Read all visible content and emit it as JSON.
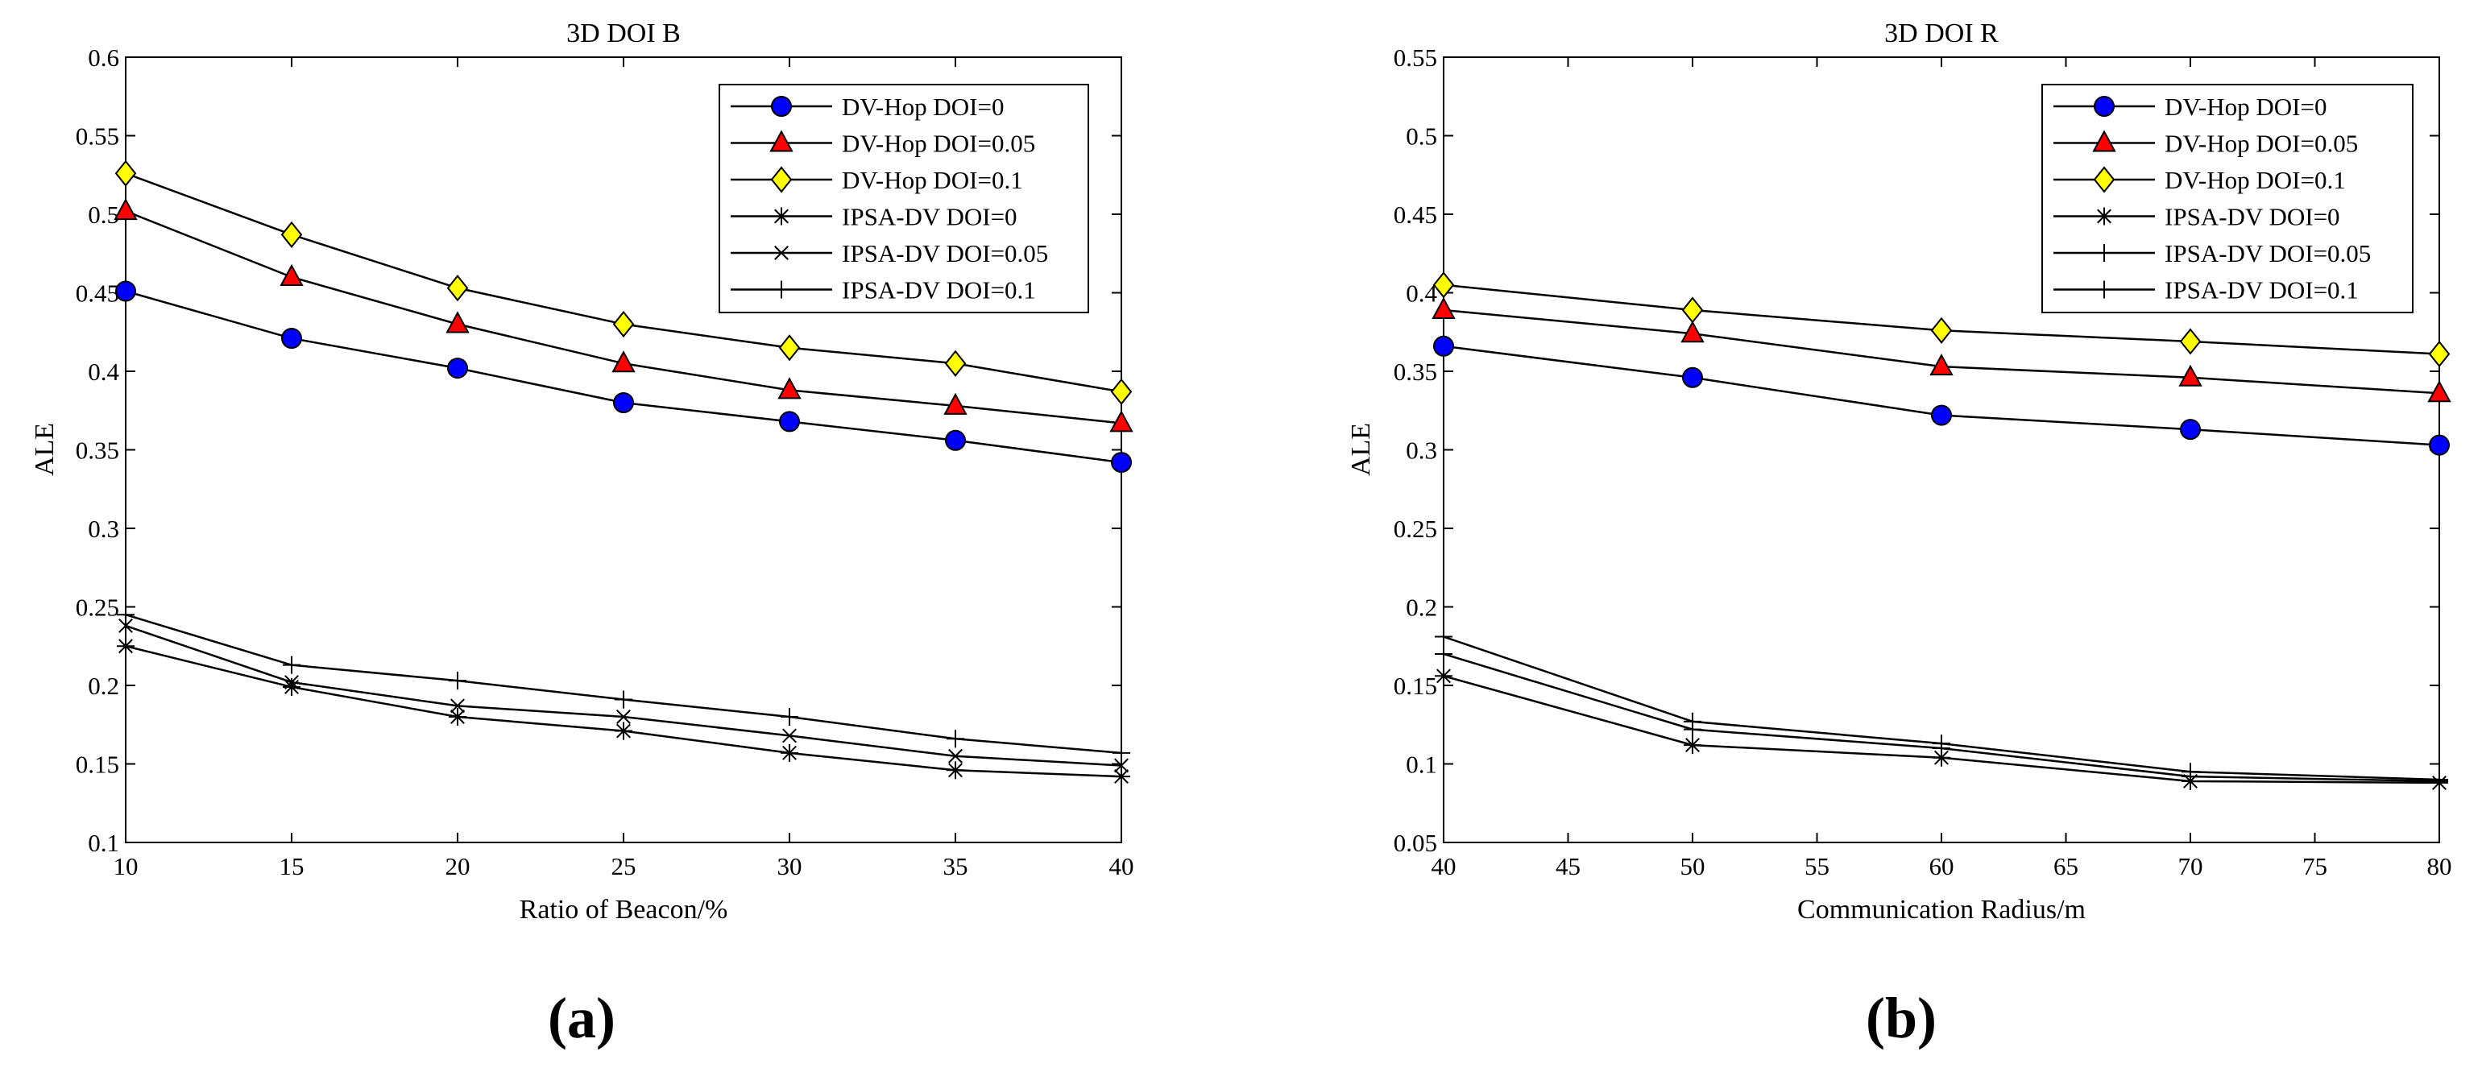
{
  "chart_data": [
    {
      "type": "line",
      "title": "3D DOI B",
      "xlabel": "Ratio of Beacon/%",
      "ylabel": "ALE",
      "xlim": [
        10,
        40
      ],
      "ylim": [
        0.1,
        0.6
      ],
      "xticks": [
        "10",
        "15",
        "20",
        "25",
        "30",
        "35",
        "40"
      ],
      "yticks": [
        "0.1",
        "0.15",
        "0.2",
        "0.25",
        "0.3",
        "0.35",
        "0.4",
        "0.45",
        "0.5",
        "0.55",
        "0.6"
      ],
      "x": [
        10,
        15,
        20,
        25,
        30,
        35,
        40
      ],
      "legend_position": "top-right",
      "series": [
        {
          "name": "DV-Hop DOI=0",
          "marker": "circle",
          "color": "#0000ff",
          "values": [
            0.451,
            0.421,
            0.402,
            0.38,
            0.368,
            0.356,
            0.342
          ]
        },
        {
          "name": "DV-Hop DOI=0.05",
          "marker": "triangle",
          "color": "#ff0000",
          "values": [
            0.502,
            0.46,
            0.43,
            0.405,
            0.388,
            0.378,
            0.367
          ]
        },
        {
          "name": "DV-Hop DOI=0.1",
          "marker": "diamond",
          "color": "#ffff00",
          "values": [
            0.526,
            0.487,
            0.453,
            0.43,
            0.415,
            0.405,
            0.387
          ]
        },
        {
          "name": "IPSA-DV DOI=0",
          "marker": "star",
          "color": "#000000",
          "values": [
            0.225,
            0.199,
            0.18,
            0.171,
            0.157,
            0.146,
            0.142
          ]
        },
        {
          "name": "IPSA-DV DOI=0.05",
          "marker": "x",
          "color": "#000000",
          "values": [
            0.238,
            0.202,
            0.187,
            0.18,
            0.168,
            0.155,
            0.149
          ]
        },
        {
          "name": "IPSA-DV DOI=0.1",
          "marker": "plus",
          "color": "#000000",
          "values": [
            0.245,
            0.213,
            0.203,
            0.191,
            0.18,
            0.166,
            0.157
          ]
        }
      ]
    },
    {
      "type": "line",
      "title": "3D DOI R",
      "xlabel": "Communication Radius/m",
      "ylabel": "ALE",
      "xlim": [
        40,
        80
      ],
      "ylim": [
        0.05,
        0.55
      ],
      "xticks": [
        "40",
        "45",
        "50",
        "55",
        "60",
        "65",
        "70",
        "75",
        "80"
      ],
      "yticks": [
        "0.05",
        "0.1",
        "0.15",
        "0.2",
        "0.25",
        "0.3",
        "0.35",
        "0.4",
        "0.45",
        "0.5",
        "0.55"
      ],
      "x": [
        40,
        50,
        60,
        70,
        80
      ],
      "legend_position": "top-right",
      "series": [
        {
          "name": "DV-Hop DOI=0",
          "marker": "circle",
          "color": "#0000ff",
          "values": [
            0.366,
            0.346,
            0.322,
            0.313,
            0.303
          ]
        },
        {
          "name": "DV-Hop DOI=0.05",
          "marker": "triangle",
          "color": "#ff0000",
          "values": [
            0.389,
            0.374,
            0.353,
            0.346,
            0.336
          ]
        },
        {
          "name": "DV-Hop DOI=0.1",
          "marker": "diamond",
          "color": "#ffff00",
          "values": [
            0.405,
            0.389,
            0.376,
            0.369,
            0.361
          ]
        },
        {
          "name": "IPSA-DV DOI=0",
          "marker": "star",
          "color": "#000000",
          "values": [
            0.156,
            0.112,
            0.104,
            0.089,
            0.088
          ]
        },
        {
          "name": "IPSA-DV DOI=0.05",
          "marker": "plus",
          "color": "#000000",
          "values": [
            0.17,
            0.122,
            0.11,
            0.092,
            0.089
          ]
        },
        {
          "name": "IPSA-DV DOI=0.1",
          "marker": "plus",
          "color": "#000000",
          "values": [
            0.181,
            0.127,
            0.113,
            0.095,
            0.09
          ]
        }
      ]
    }
  ],
  "captions": [
    "(a)",
    "(b)"
  ]
}
